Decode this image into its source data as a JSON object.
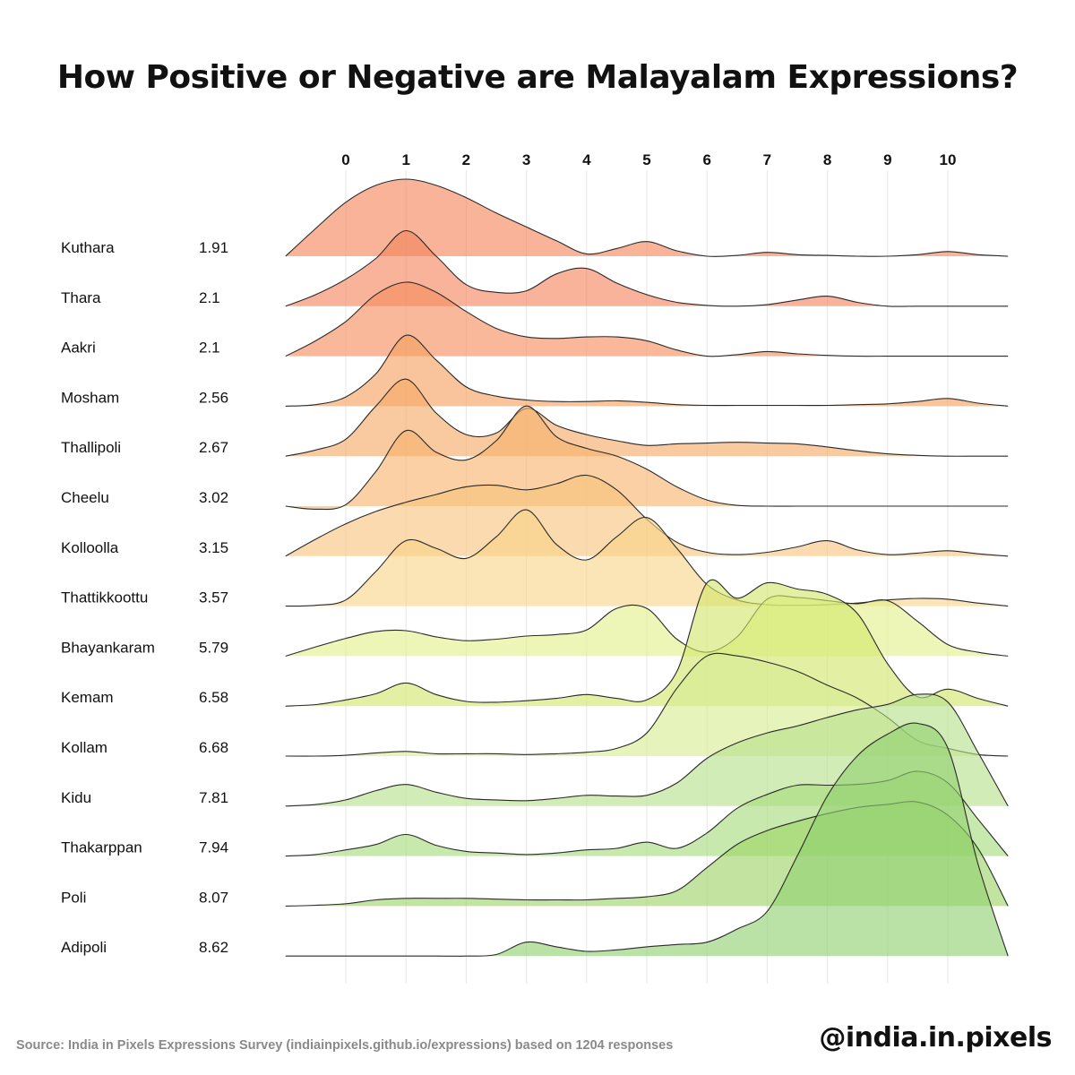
{
  "title": "How Positive or Negative are Malayalam Expressions?",
  "source": "Source: India in Pixels Expressions Survey (indiainpixels.github.io/expressions) based on 1204 responses",
  "handle": "@india.in.pixels",
  "chart_data": {
    "type": "ridgeline",
    "title": "How Positive or Negative are Malayalam Expressions?",
    "x_ticks": [
      0,
      1,
      2,
      3,
      4,
      5,
      6,
      7,
      8,
      9,
      10
    ],
    "xlim": [
      -1,
      11
    ],
    "grid": "vertical",
    "density_grid_x": [
      -1,
      -0.5,
      0,
      0.5,
      1,
      1.5,
      2,
      2.5,
      3,
      3.5,
      4,
      4.5,
      5,
      5.5,
      6,
      6.5,
      7,
      7.5,
      8,
      8.5,
      9,
      9.5,
      10,
      10.5,
      11
    ],
    "series": [
      {
        "name": "Kuthara",
        "mean": "1.91",
        "color": "#f4845a",
        "density": [
          0,
          0.36,
          0.7,
          0.92,
          1.0,
          0.92,
          0.76,
          0.56,
          0.38,
          0.2,
          0.03,
          0.1,
          0.19,
          0.07,
          0,
          0.01,
          0.05,
          0.02,
          0.01,
          0,
          0,
          0.02,
          0.06,
          0.02,
          0
        ]
      },
      {
        "name": "Thara",
        "mean": "2.1",
        "color": "#f4855c",
        "density": [
          0,
          0.15,
          0.35,
          0.62,
          0.98,
          0.65,
          0.28,
          0.18,
          0.2,
          0.42,
          0.49,
          0.3,
          0.15,
          0.05,
          0.01,
          0,
          0.02,
          0.08,
          0.13,
          0.05,
          0,
          0,
          0,
          0,
          0
        ]
      },
      {
        "name": "Aakri",
        "mean": "2.1",
        "color": "#f58c5c",
        "density": [
          0,
          0.2,
          0.45,
          0.8,
          0.96,
          0.83,
          0.58,
          0.36,
          0.25,
          0.23,
          0.25,
          0.25,
          0.2,
          0.08,
          0,
          0.02,
          0.06,
          0.03,
          0.01,
          0,
          0,
          0,
          0,
          0,
          0
        ]
      },
      {
        "name": "Mosham",
        "mean": "2.56",
        "color": "#f6a060",
        "density": [
          0,
          0.02,
          0.12,
          0.42,
          0.92,
          0.6,
          0.25,
          0.13,
          0.08,
          0.06,
          0.06,
          0.07,
          0.05,
          0.02,
          0.01,
          0.01,
          0.01,
          0.01,
          0.01,
          0.02,
          0.03,
          0.06,
          0.1,
          0.04,
          0
        ]
      },
      {
        "name": "Thallipoli",
        "mean": "2.67",
        "color": "#f6a864",
        "density": [
          0,
          0.08,
          0.22,
          0.65,
          1.0,
          0.56,
          0.28,
          0.3,
          0.62,
          0.4,
          0.28,
          0.2,
          0.14,
          0.16,
          0.17,
          0.18,
          0.17,
          0.16,
          0.12,
          0.07,
          0.03,
          0.01,
          0,
          0,
          0
        ]
      },
      {
        "name": "Cheelu",
        "mean": "3.02",
        "color": "#f7b36c",
        "density": [
          0,
          -0.04,
          0.02,
          0.45,
          0.98,
          0.7,
          0.6,
          0.85,
          1.3,
          0.9,
          0.75,
          0.65,
          0.48,
          0.25,
          0.08,
          0.01,
          0,
          0,
          0,
          0,
          0,
          0,
          0,
          0,
          0
        ]
      },
      {
        "name": "Kolloolla",
        "mean": "3.15",
        "color": "#f7c37c",
        "density": [
          0,
          0.22,
          0.42,
          0.58,
          0.7,
          0.8,
          0.9,
          0.92,
          0.86,
          0.94,
          1.05,
          0.86,
          0.48,
          0.18,
          0.05,
          0.02,
          0.05,
          0.12,
          0.2,
          0.08,
          0.02,
          0.04,
          0.07,
          0.03,
          0
        ]
      },
      {
        "name": "Thattikkoottu",
        "mean": "3.57",
        "color": "#f8d388",
        "density": [
          0,
          0.01,
          0.08,
          0.45,
          0.85,
          0.75,
          0.62,
          0.9,
          1.25,
          0.8,
          0.6,
          0.9,
          1.15,
          0.75,
          0.28,
          0.08,
          0.02,
          0.01,
          0.02,
          0.04,
          0.08,
          0.1,
          0.09,
          0.04,
          0
        ]
      },
      {
        "name": "Bhayankaram",
        "mean": "5.79",
        "color": "#e4f08a",
        "density": [
          0,
          0.12,
          0.23,
          0.32,
          0.33,
          0.25,
          0.2,
          0.22,
          0.26,
          0.28,
          0.34,
          0.62,
          0.62,
          0.22,
          0.05,
          0.25,
          0.74,
          0.76,
          0.72,
          0.68,
          0.72,
          0.45,
          0.15,
          0.05,
          0
        ]
      },
      {
        "name": "Kemam",
        "mean": "6.58",
        "color": "#d2e66a",
        "density": [
          0,
          0.02,
          0.08,
          0.16,
          0.3,
          0.15,
          0.06,
          0.05,
          0.07,
          0.1,
          0.15,
          0.1,
          0.08,
          0.45,
          1.6,
          1.4,
          1.6,
          1.52,
          1.45,
          1.2,
          0.55,
          0.12,
          0.22,
          0.1,
          0
        ]
      },
      {
        "name": "Kollam",
        "mean": "6.68",
        "color": "#d6eb92",
        "density": [
          0,
          0,
          0.01,
          0.04,
          0.06,
          0.03,
          0.03,
          0.03,
          0.02,
          0.03,
          0.05,
          0.1,
          0.3,
          0.88,
          1.3,
          1.3,
          1.22,
          1.1,
          0.92,
          0.75,
          0.5,
          0.2,
          0.1,
          0.02,
          0
        ]
      },
      {
        "name": "Kidu",
        "mean": "7.81",
        "color": "#b6e08a",
        "density": [
          0,
          0.02,
          0.08,
          0.2,
          0.28,
          0.18,
          0.1,
          0.08,
          0.07,
          0.1,
          0.14,
          0.13,
          0.14,
          0.3,
          0.62,
          0.82,
          0.95,
          1.04,
          1.15,
          1.25,
          1.32,
          1.45,
          1.35,
          0.7,
          0
        ]
      },
      {
        "name": "Thakarppan",
        "mean": "7.94",
        "color": "#a6dc7a",
        "density": [
          0,
          0.02,
          0.08,
          0.15,
          0.28,
          0.14,
          0.06,
          0.04,
          0.02,
          0.04,
          0.08,
          0.1,
          0.18,
          0.1,
          0.3,
          0.62,
          0.8,
          0.92,
          0.92,
          0.93,
          0.98,
          1.1,
          0.95,
          0.48,
          0
        ]
      },
      {
        "name": "Poli",
        "mean": "8.07",
        "color": "#9cd466",
        "density": [
          0,
          0.01,
          0.03,
          0.08,
          0.1,
          0.1,
          0.1,
          0.09,
          0.08,
          0.08,
          0.08,
          0.1,
          0.12,
          0.2,
          0.5,
          0.8,
          0.98,
          1.1,
          1.2,
          1.28,
          1.32,
          1.35,
          1.18,
          0.75,
          0
        ]
      },
      {
        "name": "Adipoli",
        "mean": "8.62",
        "color": "#92d070",
        "density": [
          0,
          0,
          0,
          0,
          0,
          0,
          0,
          0.02,
          0.18,
          0.12,
          0.06,
          0.08,
          0.12,
          0.15,
          0.18,
          0.35,
          0.58,
          1.3,
          2.08,
          2.6,
          2.88,
          3.02,
          2.7,
          1.2,
          0
        ]
      }
    ]
  }
}
